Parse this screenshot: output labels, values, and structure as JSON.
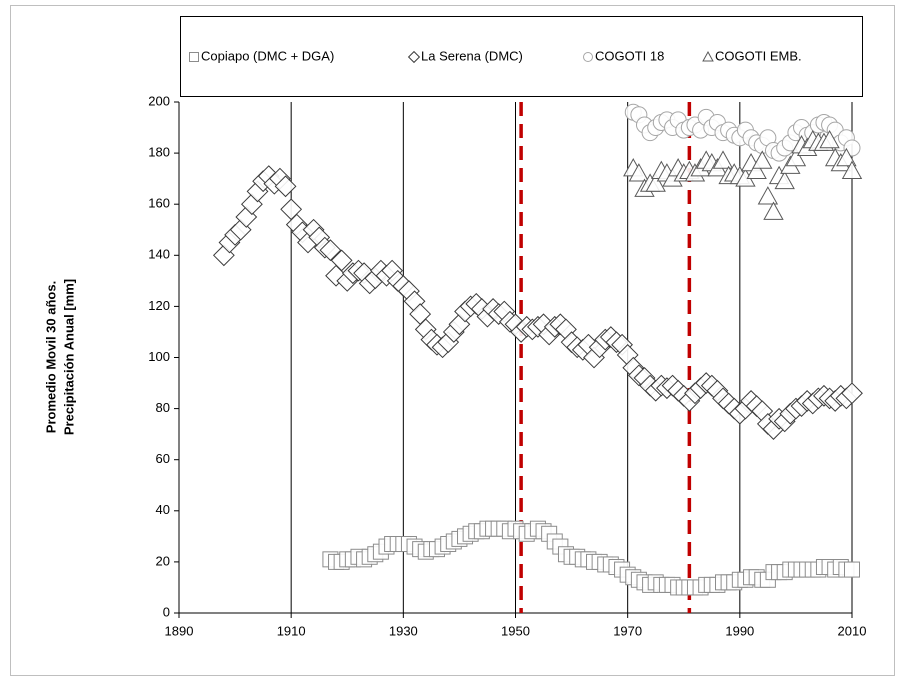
{
  "chart_data": {
    "type": "scatter",
    "ylabel": [
      "Promedio Movil 30 años.",
      "Precipitación Anual [mm]"
    ],
    "xlim": [
      1890,
      2010
    ],
    "xticks": [
      1890,
      1910,
      1930,
      1950,
      1970,
      1990,
      2010
    ],
    "ylim": [
      0,
      200
    ],
    "yticks": [
      0,
      20,
      40,
      60,
      80,
      100,
      120,
      140,
      160,
      180,
      200
    ],
    "grid": "x",
    "vlines": {
      "x": [
        1951,
        1981
      ],
      "color": "#c00000"
    },
    "series": [
      {
        "name": "Copiapo (DMC + DGA)",
        "marker": "square",
        "color": "#8c8c8c",
        "x": [
          1917,
          1918,
          1919,
          1920,
          1921,
          1922,
          1923,
          1924,
          1925,
          1926,
          1927,
          1928,
          1929,
          1930,
          1931,
          1932,
          1933,
          1934,
          1935,
          1936,
          1937,
          1938,
          1939,
          1940,
          1941,
          1942,
          1943,
          1944,
          1945,
          1946,
          1947,
          1948,
          1949,
          1950,
          1951,
          1952,
          1953,
          1954,
          1955,
          1956,
          1957,
          1958,
          1959,
          1960,
          1961,
          1962,
          1963,
          1964,
          1965,
          1966,
          1967,
          1968,
          1969,
          1970,
          1971,
          1972,
          1973,
          1974,
          1975,
          1976,
          1977,
          1978,
          1979,
          1980,
          1981,
          1982,
          1983,
          1984,
          1985,
          1986,
          1987,
          1988,
          1989,
          1990,
          1991,
          1992,
          1993,
          1994,
          1995,
          1996,
          1997,
          1998,
          1999,
          2000,
          2001,
          2002,
          2003,
          2004,
          2005,
          2006,
          2007,
          2008,
          2009,
          2010
        ],
        "values": [
          21,
          20,
          20,
          21,
          21,
          22,
          21,
          22,
          23,
          24,
          26,
          27,
          27,
          27,
          27,
          26,
          25,
          24,
          25,
          25,
          26,
          27,
          28,
          29,
          30,
          31,
          32,
          32,
          33,
          33,
          33,
          33,
          32,
          33,
          32,
          31,
          32,
          33,
          32,
          31,
          28,
          26,
          23,
          22,
          22,
          21,
          21,
          20,
          20,
          19,
          19,
          18,
          17,
          15,
          14,
          13,
          12,
          11,
          12,
          11,
          11,
          11,
          10,
          10,
          10,
          10,
          10,
          11,
          11,
          11,
          12,
          12,
          12,
          13,
          13,
          14,
          14,
          13,
          13,
          16,
          16,
          16,
          17,
          17,
          17,
          17,
          17,
          17,
          18,
          18,
          17,
          18,
          17,
          17
        ]
      },
      {
        "name": "La Serena (DMC)",
        "marker": "diamond",
        "color": "#3a3a3a",
        "x": [
          1898,
          1899,
          1900,
          1901,
          1902,
          1903,
          1904,
          1905,
          1906,
          1907,
          1908,
          1909,
          1910,
          1911,
          1912,
          1913,
          1914,
          1915,
          1916,
          1917,
          1918,
          1919,
          1920,
          1921,
          1922,
          1923,
          1924,
          1925,
          1926,
          1927,
          1928,
          1929,
          1930,
          1931,
          1932,
          1933,
          1934,
          1935,
          1936,
          1937,
          1938,
          1939,
          1940,
          1941,
          1942,
          1943,
          1944,
          1945,
          1946,
          1947,
          1948,
          1949,
          1950,
          1951,
          1952,
          1953,
          1954,
          1955,
          1956,
          1957,
          1958,
          1959,
          1960,
          1961,
          1962,
          1963,
          1964,
          1965,
          1966,
          1967,
          1968,
          1969,
          1970,
          1971,
          1972,
          1973,
          1974,
          1975,
          1976,
          1977,
          1978,
          1979,
          1980,
          1981,
          1982,
          1983,
          1984,
          1985,
          1986,
          1987,
          1988,
          1989,
          1990,
          1991,
          1992,
          1993,
          1994,
          1995,
          1996,
          1997,
          1998,
          1999,
          2000,
          2001,
          2002,
          2003,
          2004,
          2005,
          2006,
          2007,
          2008,
          2009,
          2010
        ],
        "values": [
          140,
          145,
          148,
          150,
          155,
          160,
          165,
          169,
          171,
          168,
          170,
          167,
          158,
          152,
          149,
          145,
          150,
          147,
          143,
          142,
          132,
          138,
          130,
          133,
          134,
          133,
          129,
          131,
          134,
          132,
          134,
          130,
          128,
          126,
          122,
          117,
          111,
          107,
          105,
          104,
          106,
          110,
          113,
          118,
          120,
          121,
          119,
          116,
          119,
          117,
          118,
          114,
          113,
          110,
          112,
          111,
          112,
          113,
          109,
          112,
          113,
          111,
          106,
          104,
          103,
          105,
          100,
          104,
          107,
          108,
          106,
          105,
          101,
          96,
          93,
          92,
          89,
          87,
          89,
          88,
          89,
          87,
          85,
          83,
          86,
          88,
          90,
          89,
          87,
          84,
          82,
          80,
          78,
          80,
          83,
          81,
          79,
          74,
          72,
          76,
          75,
          78,
          80,
          81,
          83,
          82,
          84,
          85,
          84,
          83,
          85,
          84,
          86
        ]
      },
      {
        "name": "COGOTI 18",
        "marker": "circle",
        "color": "#a6a6a6",
        "x": [
          1971,
          1972,
          1973,
          1974,
          1975,
          1976,
          1977,
          1978,
          1979,
          1980,
          1981,
          1982,
          1983,
          1984,
          1985,
          1986,
          1987,
          1988,
          1989,
          1990,
          1991,
          1992,
          1993,
          1994,
          1995,
          1996,
          1997,
          1998,
          1999,
          2000,
          2001,
          2002,
          2003,
          2004,
          2005,
          2006,
          2007,
          2008,
          2009,
          2010
        ],
        "values": [
          196,
          195,
          191,
          188,
          190,
          192,
          193,
          190,
          193,
          189,
          190,
          191,
          189,
          194,
          190,
          192,
          188,
          189,
          187,
          186,
          189,
          186,
          184,
          183,
          186,
          181,
          180,
          182,
          184,
          188,
          190,
          187,
          188,
          191,
          192,
          191,
          189,
          184,
          186,
          182
        ]
      },
      {
        "name": "COGOTI EMB.",
        "marker": "triangle",
        "color": "#595959",
        "x": [
          1971,
          1972,
          1973,
          1974,
          1975,
          1976,
          1977,
          1978,
          1979,
          1980,
          1981,
          1982,
          1983,
          1984,
          1985,
          1986,
          1987,
          1988,
          1989,
          1990,
          1991,
          1992,
          1993,
          1994,
          1995,
          1996,
          1997,
          1998,
          1999,
          2000,
          2001,
          2002,
          2003,
          2004,
          2005,
          2006,
          2007,
          2008,
          2009,
          2010
        ],
        "values": [
          174,
          172,
          166,
          168,
          168,
          173,
          172,
          170,
          174,
          172,
          173,
          172,
          174,
          177,
          176,
          174,
          177,
          171,
          172,
          171,
          170,
          176,
          173,
          177,
          163,
          157,
          171,
          169,
          175,
          178,
          183,
          182,
          185,
          184,
          184,
          185,
          178,
          176,
          178,
          173
        ]
      }
    ]
  }
}
